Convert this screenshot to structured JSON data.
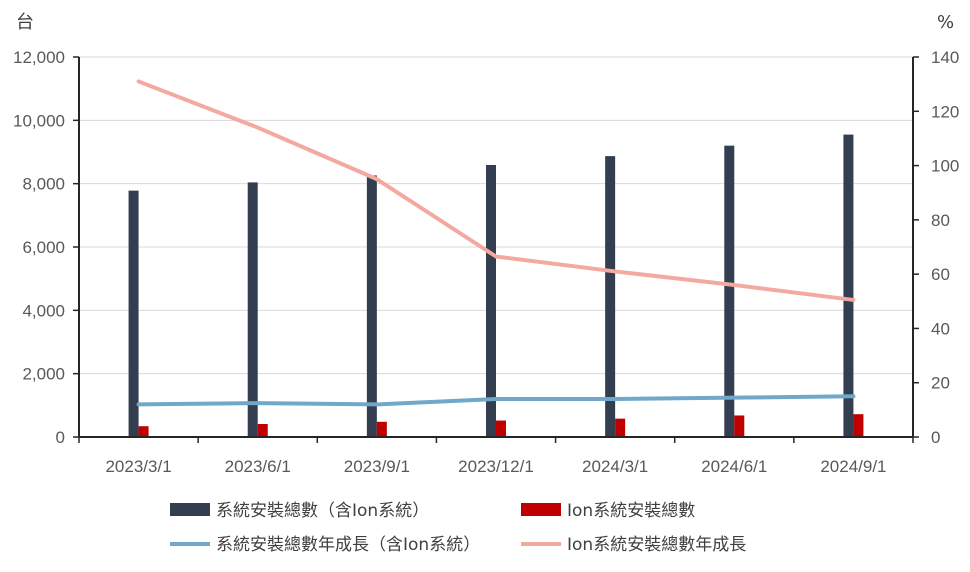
{
  "chart_data": {
    "type": "bar",
    "categories": [
      "2023/3/1",
      "2023/6/1",
      "2023/9/1",
      "2023/12/1",
      "2024/3/1",
      "2024/6/1",
      "2024/9/1"
    ],
    "y_left_unit": "台",
    "y_right_unit": "%",
    "y_left_ticks": [
      "0",
      "2,000",
      "4,000",
      "6,000",
      "8,000",
      "10,000",
      "12,000"
    ],
    "y_right_ticks": [
      "0",
      "20",
      "40",
      "60",
      "80",
      "100",
      "120",
      "140"
    ],
    "ylim_left": [
      0,
      12000
    ],
    "ylim_right": [
      0,
      140
    ],
    "grid": true,
    "legend_position": "bottom",
    "series": [
      {
        "name": "系統安裝總數（含Ion系統）",
        "kind": "bar",
        "axis": "left",
        "color": "#333f50",
        "values": [
          7780,
          8040,
          8260,
          8590,
          8870,
          9200,
          9550
        ]
      },
      {
        "name": "Ion系統安裝總數",
        "kind": "bar",
        "axis": "left",
        "color": "#c00000",
        "values": [
          340,
          410,
          480,
          520,
          580,
          680,
          720
        ]
      },
      {
        "name": "系統安裝總數年成長（含Ion系統）",
        "kind": "line",
        "axis": "right",
        "color": "#6fa8c8",
        "values": [
          12,
          12.5,
          12,
          14,
          14,
          14.5,
          15
        ]
      },
      {
        "name": "Ion系統安裝總數年成長",
        "kind": "line",
        "axis": "right",
        "color": "#f4a9a0",
        "values": [
          131,
          114,
          95,
          66.5,
          61,
          56,
          50.5
        ]
      }
    ]
  }
}
